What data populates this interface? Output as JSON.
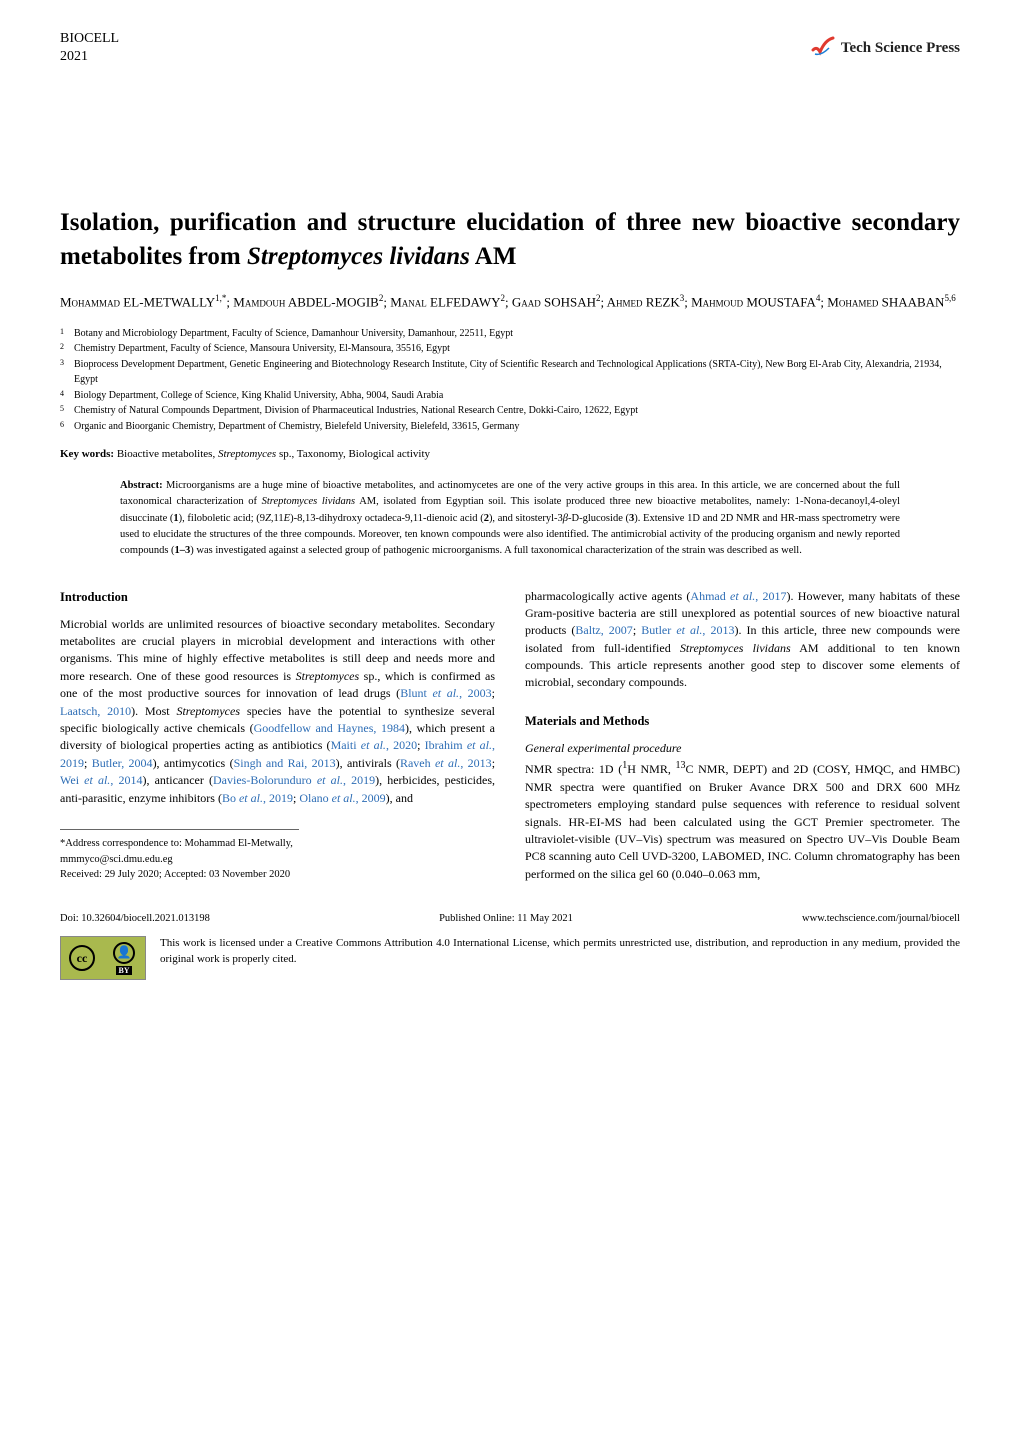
{
  "header": {
    "journal": "BIOCELL",
    "year": "2021",
    "publisher": "Tech Science Press",
    "logo_colors": {
      "check": "#e03a2f",
      "trail": "#1c7ed6"
    }
  },
  "title": "Isolation, purification and structure elucidation of three new bioactive secondary metabolites from Streptomyces lividans AM",
  "authors_html": "Mohammad EL-METWALLY<sup>1,*</sup>; Mamdouh ABDEL-MOGIB<sup>2</sup>; Manal ELFEDAWY<sup>2</sup>; Gaad SOHSAH<sup>2</sup>; Ahmed REZK<sup>3</sup>; Mahmoud MOUSTAFA<sup>4</sup>; Mohamed SHAABAN<sup>5,6</sup>",
  "affiliations": [
    {
      "n": "1",
      "text": "Botany and Microbiology Department, Faculty of Science, Damanhour University, Damanhour, 22511, Egypt"
    },
    {
      "n": "2",
      "text": "Chemistry Department, Faculty of Science, Mansoura University, El-Mansoura, 35516, Egypt"
    },
    {
      "n": "3",
      "text": "Bioprocess Development Department, Genetic Engineering and Biotechnology Research Institute, City of Scientific Research and Technological Applications (SRTA-City), New Borg El-Arab City, Alexandria, 21934, Egypt"
    },
    {
      "n": "4",
      "text": "Biology Department, College of Science, King Khalid University, Abha, 9004, Saudi Arabia"
    },
    {
      "n": "5",
      "text": "Chemistry of Natural Compounds Department, Division of Pharmaceutical Industries, National Research Centre, Dokki-Cairo, 12622, Egypt"
    },
    {
      "n": "6",
      "text": "Organic and Bioorganic Chemistry, Department of Chemistry, Bielefeld University, Bielefeld, 33615, Germany"
    }
  ],
  "keywords": {
    "label": "Key words:",
    "text": " Bioactive metabolites, Streptomyces sp., Taxonomy, Biological activity"
  },
  "abstract": {
    "label": "Abstract:",
    "text": " Microorganisms are a huge mine of bioactive metabolites, and actinomycetes are one of the very active groups in this area. In this article, we are concerned about the full taxonomical characterization of Streptomyces lividans AM, isolated from Egyptian soil. This isolate produced three new bioactive metabolites, namely: 1-Nona-decanoyl,4-oleyl disuccinate (1), filoboletic acid; (9Z,11E)-8,13-dihydroxy octadeca-9,11-dienoic acid (2), and sitosteryl-3β-D-glucoside (3). Extensive 1D and 2D NMR and HR-mass spectrometry were used to elucidate the structures of the three compounds. Moreover, ten known compounds were also identified. The antimicrobial activity of the producing organism and newly reported compounds (1–3) was investigated against a selected group of pathogenic microorganisms. A full taxonomical characterization of the strain was described as well."
  },
  "sections": {
    "introduction": {
      "heading": "Introduction",
      "para": "Microbial worlds are unlimited resources of bioactive secondary metabolites. Secondary metabolites are crucial players in microbial development and interactions with other organisms. This mine of highly effective metabolites is still deep and needs more and more research. One of these good resources is Streptomyces sp., which is confirmed as one of the most productive sources for innovation of lead drugs (",
      "r1": "Blunt et al., 2003",
      "s1": "; ",
      "r2": "Laatsch, 2010",
      "s2": "). Most Streptomyces species have the potential to synthesize several specific biologically active chemicals (",
      "r3": "Goodfellow and Haynes, 1984",
      "s3": "), which present a diversity of biological properties acting as antibiotics (",
      "r4": "Maiti et al., 2020",
      "s4": "; ",
      "r5": "Ibrahim et al., 2019",
      "s5": "; ",
      "r6": "Butler, 2004",
      "s6": "), antimycotics (",
      "r7": "Singh and Rai, 2013",
      "s7": "), antivirals (",
      "r8": "Raveh et al., 2013",
      "s8": "; ",
      "r9": "Wei et al., 2014",
      "s9": "), anticancer (",
      "r10": "Davies-Bolorunduro et al., 2019",
      "s10": "), herbicides, pesticides, anti-parasitic, enzyme inhibitors (",
      "r11": "Bo et al., 2019",
      "s11": "; ",
      "r12": "Olano et al., 2009",
      "s12": "), and ",
      "col2_pre": "pharmacologically active agents (",
      "r13": "Ahmad et al., 2017",
      "s13": "). However, many habitats of these Gram-positive bacteria are still unexplored as potential sources of new bioactive natural products (",
      "r14": "Baltz, 2007",
      "s14": "; ",
      "r15": "Butler et al., 2013",
      "s15": "). In this article, three new compounds were isolated from full-identified Streptomyces lividans AM additional to ten known compounds. This article represents another good step to discover some elements of microbial, secondary compounds."
    },
    "methods": {
      "heading": "Materials and Methods",
      "sub": "General experimental procedure",
      "para_pre": "NMR spectra: 1D (",
      "sup1": "1",
      "mid1": "H NMR, ",
      "sup2": "13",
      "mid2": "C NMR, DEPT) and 2D (COSY, HMQC, and HMBC) NMR spectra were quantified on Bruker Avance DRX 500 and DRX 600 MHz spectrometers employing standard pulse sequences with reference to residual solvent signals. HR-EI-MS had been calculated using the GCT Premier spectrometer. The ultraviolet-visible (UV–Vis) spectrum was measured on Spectro UV–Vis Double Beam PC8 scanning auto Cell UVD-3200, LABOMED, INC. Column chromatography has been performed on the silica gel 60 (0.040–0.063 mm,"
    }
  },
  "correspondence": {
    "line1": "*Address correspondence to: Mohammad El-Metwally,",
    "email": "mmmyco@sci.dmu.edu.eg",
    "received": "Received: 29 July 2020; Accepted: 03 November 2020"
  },
  "footer": {
    "doi": "Doi: 10.32604/biocell.2021.013198",
    "pub_online": "Published Online: 11 May 2021",
    "journal_url": "www.techscience.com/journal/biocell",
    "license": "This work is licensed under a Creative Commons Attribution 4.0 International License, which permits unrestricted use, distribution, and reproduction in any medium, provided the original work is properly cited.",
    "cc": "cc",
    "by_icon": "👤",
    "by_label": "BY"
  },
  "colors": {
    "link": "#2d6db5",
    "text": "#000000",
    "cc_bg": "#a9b94e"
  }
}
